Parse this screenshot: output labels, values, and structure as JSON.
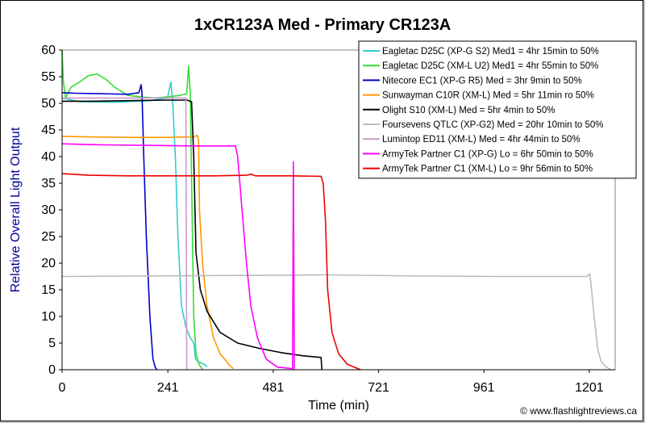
{
  "chart_data": {
    "type": "line",
    "title": "1xCR123A Med - Primary CR123A",
    "xlabel": "Time (min)",
    "ylabel": "Relative Overall Light Output",
    "xlim": [
      0,
      1260
    ],
    "ylim": [
      0,
      60
    ],
    "xticks": [
      0,
      241,
      481,
      721,
      961,
      1201
    ],
    "yticks": [
      0,
      5,
      10,
      15,
      20,
      25,
      30,
      35,
      40,
      45,
      50,
      55,
      60
    ],
    "grid": false,
    "legend_position": "top-right",
    "credit": "© www.flashlightreviews.ca",
    "series": [
      {
        "name": "Eagletac D25C (XP-G S2) Med1 = 4hr 15min to 50%",
        "color": "#33cccc",
        "points": [
          [
            0,
            51
          ],
          [
            40,
            50.3
          ],
          [
            120,
            50.2
          ],
          [
            200,
            50.5
          ],
          [
            240,
            51
          ],
          [
            248,
            54
          ],
          [
            252,
            50
          ],
          [
            258,
            40
          ],
          [
            264,
            25
          ],
          [
            272,
            12
          ],
          [
            282,
            8
          ],
          [
            292,
            6
          ],
          [
            300,
            5
          ],
          [
            304,
            2
          ],
          [
            310,
            1.5
          ],
          [
            325,
            1
          ],
          [
            330,
            0.5
          ]
        ]
      },
      {
        "name": "Eagletac D25C (XM-L U2) Med1 = 4hr 55min to 50%",
        "color": "#33dd33",
        "points": [
          [
            0,
            60
          ],
          [
            3,
            54
          ],
          [
            8,
            51
          ],
          [
            20,
            53
          ],
          [
            40,
            54
          ],
          [
            60,
            55.2
          ],
          [
            80,
            55.5
          ],
          [
            100,
            54.5
          ],
          [
            120,
            53
          ],
          [
            150,
            51.5
          ],
          [
            180,
            51.2
          ],
          [
            210,
            51
          ],
          [
            240,
            51.2
          ],
          [
            270,
            51.5
          ],
          [
            284,
            51.8
          ],
          [
            288,
            57
          ],
          [
            292,
            52
          ],
          [
            296,
            30
          ],
          [
            300,
            10
          ],
          [
            305,
            3
          ],
          [
            312,
            1
          ],
          [
            320,
            0
          ]
        ]
      },
      {
        "name": "Nitecore EC1 (XP-G R5) Med = 3hr 9min to 50%",
        "color": "#0000cc",
        "points": [
          [
            0,
            52
          ],
          [
            30,
            51.9
          ],
          [
            90,
            51.8
          ],
          [
            150,
            51.7
          ],
          [
            175,
            52
          ],
          [
            180,
            53.5
          ],
          [
            182,
            52
          ],
          [
            186,
            40
          ],
          [
            192,
            25
          ],
          [
            200,
            10
          ],
          [
            207,
            2
          ],
          [
            212,
            0.5
          ],
          [
            216,
            0
          ]
        ]
      },
      {
        "name": "Sunwayman C10R (XM-L) Med = 5hr 11min ro 50%",
        "color": "#ff9900",
        "points": [
          [
            0,
            43.8
          ],
          [
            60,
            43.7
          ],
          [
            150,
            43.6
          ],
          [
            240,
            43.6
          ],
          [
            300,
            43.7
          ],
          [
            308,
            44
          ],
          [
            311,
            43
          ],
          [
            313,
            30
          ],
          [
            320,
            20
          ],
          [
            330,
            12
          ],
          [
            345,
            6
          ],
          [
            360,
            3
          ],
          [
            380,
            1
          ],
          [
            390,
            0.2
          ]
        ]
      },
      {
        "name": "Olight S10 (XM-L) Med = 5hr 4min to 50%",
        "color": "#000000",
        "points": [
          [
            0,
            50.4
          ],
          [
            60,
            50.4
          ],
          [
            150,
            50.5
          ],
          [
            240,
            50.6
          ],
          [
            285,
            50.6
          ],
          [
            295,
            50.3
          ],
          [
            300,
            40
          ],
          [
            305,
            22
          ],
          [
            315,
            15
          ],
          [
            330,
            11
          ],
          [
            360,
            7
          ],
          [
            400,
            5
          ],
          [
            450,
            4
          ],
          [
            500,
            3.2
          ],
          [
            550,
            2.6
          ],
          [
            590,
            2.3
          ],
          [
            592,
            0
          ]
        ]
      },
      {
        "name": "Foursevens QTLC (XP-G2) Med = 20hr 10min to 50%",
        "color": "#bbbbbb",
        "points": [
          [
            0,
            17.5
          ],
          [
            200,
            17.6
          ],
          [
            400,
            17.7
          ],
          [
            600,
            17.8
          ],
          [
            800,
            17.6
          ],
          [
            1000,
            17.5
          ],
          [
            1195,
            17.5
          ],
          [
            1202,
            18
          ],
          [
            1205,
            16
          ],
          [
            1212,
            10
          ],
          [
            1220,
            4
          ],
          [
            1228,
            1.5
          ],
          [
            1240,
            0.5
          ],
          [
            1250,
            0
          ]
        ]
      },
      {
        "name": "Lumintop ED11 (XM-L) Med = 4hr 44min to 50%",
        "color": "#cc99cc",
        "points": [
          [
            0,
            51
          ],
          [
            100,
            51
          ],
          [
            200,
            51
          ],
          [
            270,
            51
          ],
          [
            282,
            51
          ],
          [
            284,
            0
          ]
        ]
      },
      {
        "name": "ArmyTek Partner C1 (XP-G) Lo = 6hr 50min to 50%",
        "color": "#ff00ff",
        "points": [
          [
            0,
            42.4
          ],
          [
            100,
            42.2
          ],
          [
            200,
            42.1
          ],
          [
            300,
            42
          ],
          [
            395,
            42
          ],
          [
            400,
            40
          ],
          [
            410,
            30
          ],
          [
            420,
            20
          ],
          [
            430,
            12
          ],
          [
            445,
            6
          ],
          [
            465,
            2
          ],
          [
            490,
            0.5
          ],
          [
            525,
            0.2
          ],
          [
            527,
            39
          ],
          [
            529,
            0
          ]
        ]
      },
      {
        "name": "ArmyTek Partner C1 (XM-L) Lo = 9hr 56min to 50%",
        "color": "#ee0000",
        "points": [
          [
            0,
            36.8
          ],
          [
            60,
            36.5
          ],
          [
            150,
            36.4
          ],
          [
            250,
            36.4
          ],
          [
            350,
            36.4
          ],
          [
            420,
            36.5
          ],
          [
            430,
            36.7
          ],
          [
            440,
            36.4
          ],
          [
            520,
            36.4
          ],
          [
            590,
            36.3
          ],
          [
            595,
            35
          ],
          [
            600,
            28
          ],
          [
            605,
            15
          ],
          [
            615,
            7
          ],
          [
            630,
            3
          ],
          [
            650,
            1
          ],
          [
            680,
            0
          ]
        ]
      }
    ]
  }
}
